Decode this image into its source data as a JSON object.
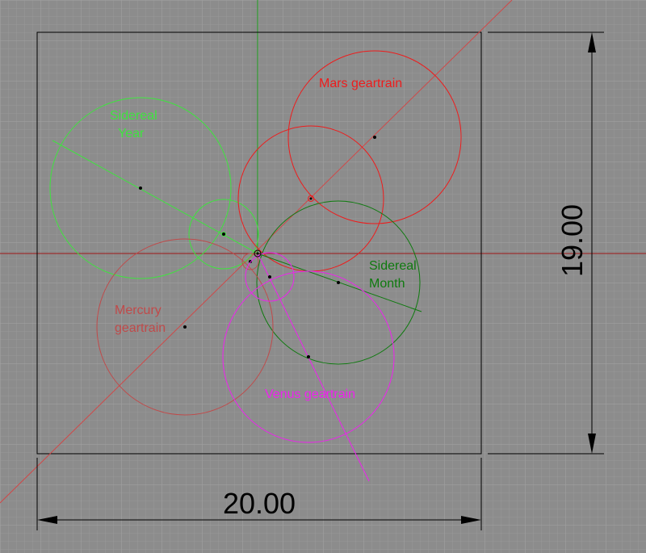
{
  "labels": {
    "sidereal_year_1": "Sidereal",
    "sidereal_year_2": "Year",
    "mars": "Mars geartrain",
    "sidereal_month_1": "Sidereal",
    "sidereal_month_2": "Month",
    "mercury_1": "Mercury",
    "mercury_2": "geartrain",
    "venus": "Venus geartrain"
  },
  "dimensions": {
    "width": "20.00",
    "height": "19.00"
  },
  "colors": {
    "background": "#8c8c8c",
    "grid_minor": "#999999",
    "grid_major": "#a6a6a6",
    "sidereal_year": "#3fe33f",
    "mars": "#ee1c1c",
    "sidereal_month": "#0e7a0e",
    "mercury": "#c04a4a",
    "venus": "#ee22ee",
    "frame": "#000000",
    "axis_x": "#a01818",
    "axis_y": "#1fa01f"
  }
}
